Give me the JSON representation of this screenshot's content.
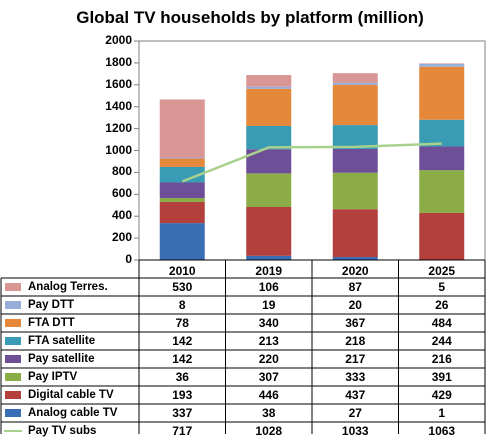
{
  "chart_data": {
    "type": "bar",
    "stacked": true,
    "title": "Global TV households by platform (million)",
    "categories": [
      "2010",
      "2019",
      "2020",
      "2025"
    ],
    "ylim": [
      0,
      2000
    ],
    "yticks": [
      "0",
      "200",
      "400",
      "600",
      "800",
      "1000",
      "1200",
      "1400",
      "1600",
      "1800",
      "2000"
    ],
    "grid": false,
    "legend": "data table below chart",
    "series": [
      {
        "name": "Analog cable TV",
        "type": "bar",
        "color": "#3A6EB4",
        "values": [
          337,
          38,
          27,
          1
        ]
      },
      {
        "name": "Digital cable TV",
        "type": "bar",
        "color": "#B4403D",
        "values": [
          193,
          446,
          437,
          429
        ]
      },
      {
        "name": "Pay IPTV",
        "type": "bar",
        "color": "#8BAC46",
        "values": [
          36,
          307,
          333,
          391
        ]
      },
      {
        "name": "Pay satellite",
        "type": "bar",
        "color": "#6E4E96",
        "values": [
          142,
          220,
          217,
          216
        ]
      },
      {
        "name": "FTA satellite",
        "type": "bar",
        "color": "#3A9BB5",
        "values": [
          142,
          213,
          218,
          244
        ]
      },
      {
        "name": "FTA DTT",
        "type": "bar",
        "color": "#E5883A",
        "values": [
          78,
          340,
          367,
          484
        ]
      },
      {
        "name": "Pay DTT",
        "type": "bar",
        "color": "#97AEDB",
        "values": [
          8,
          19,
          20,
          26
        ]
      },
      {
        "name": "Analog Terres.",
        "type": "bar",
        "color": "#D99694",
        "values": [
          530,
          106,
          87,
          5
        ]
      },
      {
        "name": "Pay TV subs",
        "type": "line",
        "color": "#A9D18E",
        "values": [
          717,
          1028,
          1033,
          1063
        ]
      }
    ],
    "table_row_order": [
      "Analog Terres.",
      "Pay DTT",
      "FTA DTT",
      "FTA satellite",
      "Pay satellite",
      "Pay IPTV",
      "Digital cable TV",
      "Analog cable TV",
      "Pay TV subs"
    ]
  }
}
